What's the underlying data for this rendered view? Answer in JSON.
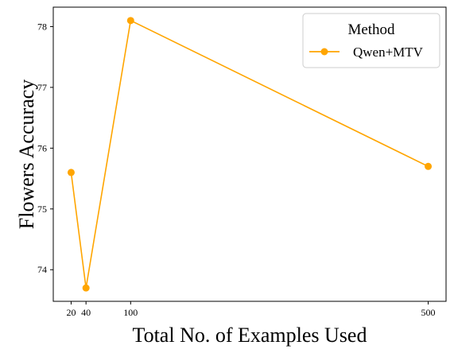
{
  "chart_data": {
    "type": "line",
    "xlabel": "Total No. of Examples Used",
    "ylabel": "Flowers Accuracy",
    "x_ticks": [
      20,
      40,
      100,
      500
    ],
    "y_ticks": [
      74,
      75,
      76,
      77,
      78
    ],
    "xlim": [
      -4,
      524
    ],
    "ylim": [
      73.48,
      78.32
    ],
    "grid": false,
    "legend": {
      "title": "Method",
      "placement": "top-right"
    },
    "series": [
      {
        "name": "Qwen+MTV",
        "color": "#FFA500",
        "marker": "circle",
        "x": [
          20,
          40,
          100,
          500
        ],
        "y": [
          75.6,
          73.7,
          78.1,
          75.7
        ]
      }
    ]
  }
}
